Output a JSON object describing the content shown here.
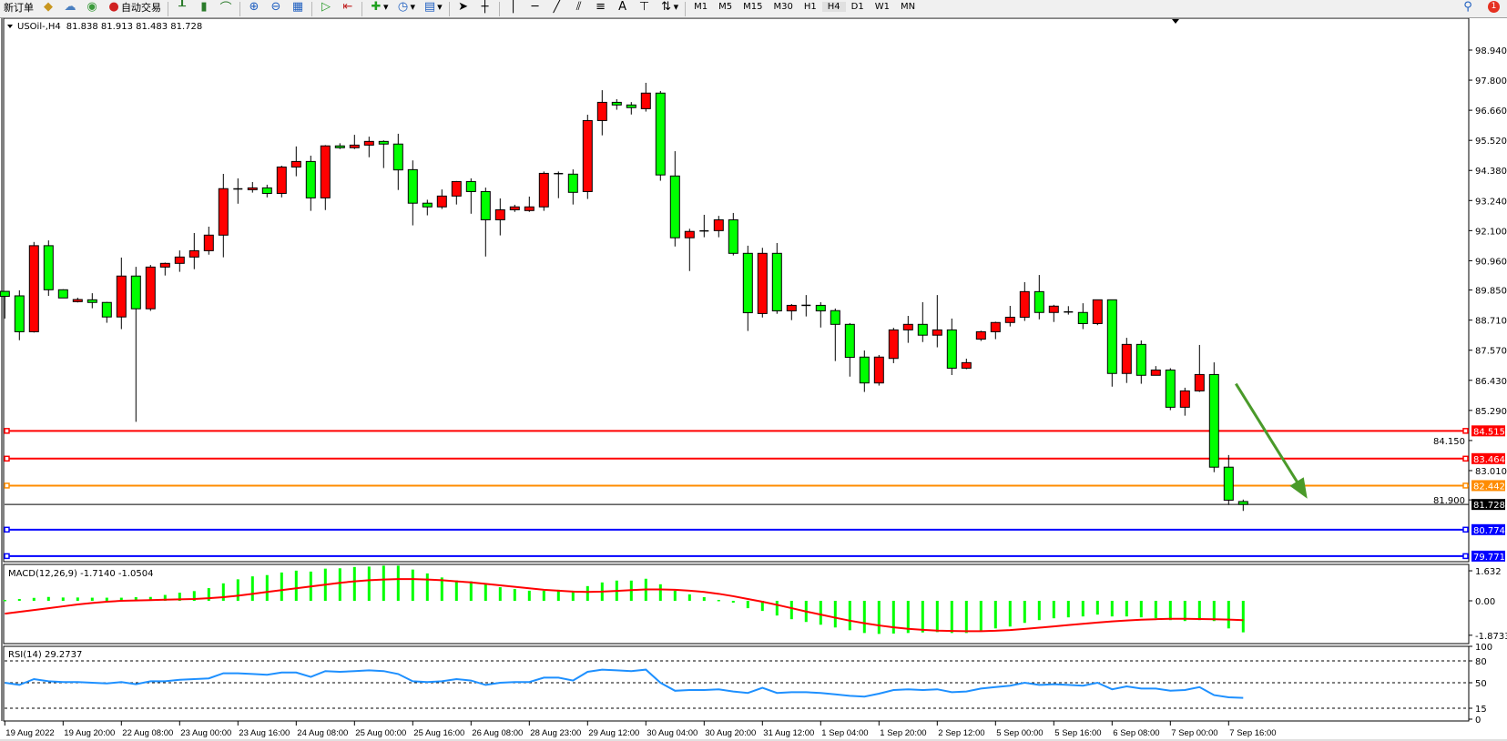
{
  "toolbar": {
    "new_order_label": "新订单",
    "auto_trading_label": "自动交易",
    "timeframes": [
      "M1",
      "M5",
      "M15",
      "M30",
      "H1",
      "H4",
      "D1",
      "W1",
      "MN"
    ],
    "active_timeframe": "H4",
    "notification_count": "1"
  },
  "chart_header": {
    "symbol_label": "USOil-,H4",
    "ohlc_text": "81.838 81.913 81.483 81.728"
  },
  "colors": {
    "bull_candle": "#ff0000",
    "bear_candle": "#00ff00",
    "macd_histogram": "#00ff00",
    "macd_signal": "#ff0000",
    "rsi_line": "#1e90ff",
    "arrow": "#4a9a2a"
  },
  "chart_data": [
    {
      "type": "candlestick",
      "symbol": "USOil-",
      "timeframe": "H4",
      "ylim": [
        79.62,
        99.5
      ],
      "y_ticks": [
        "98.940",
        "97.800",
        "96.660",
        "95.520",
        "94.380",
        "93.240",
        "92.100",
        "90.960",
        "89.850",
        "88.710",
        "87.570",
        "86.430",
        "85.290",
        "84.150",
        "83.010",
        "81.900"
      ],
      "x_tick_labels": [
        "19 Aug 2022",
        "19 Aug 20:00",
        "22 Aug 08:00",
        "23 Aug 00:00",
        "23 Aug 16:00",
        "24 Aug 08:00",
        "25 Aug 00:00",
        "25 Aug 16:00",
        "26 Aug 08:00",
        "28 Aug 23:00",
        "29 Aug 12:00",
        "30 Aug 04:00",
        "30 Aug 20:00",
        "31 Aug 12:00",
        "1 Sep 04:00",
        "1 Sep 20:00",
        "2 Sep 12:00",
        "5 Sep 00:00",
        "5 Sep 16:00",
        "6 Sep 08:00",
        "7 Sep 00:00",
        "7 Sep 16:00"
      ],
      "ohlc_fields": [
        "open",
        "high",
        "low",
        "close"
      ],
      "candles": [
        [
          89.8,
          89.8,
          88.77,
          89.61
        ],
        [
          89.63,
          89.84,
          87.95,
          88.27
        ],
        [
          88.27,
          91.67,
          88.24,
          91.53
        ],
        [
          91.53,
          91.73,
          89.63,
          89.86
        ],
        [
          89.86,
          89.88,
          89.55,
          89.55
        ],
        [
          89.41,
          89.56,
          89.38,
          89.49
        ],
        [
          89.48,
          89.73,
          89.16,
          89.38
        ],
        [
          89.38,
          89.4,
          88.61,
          88.83
        ],
        [
          88.83,
          91.08,
          88.37,
          90.38
        ],
        [
          90.38,
          90.73,
          84.86,
          89.14
        ],
        [
          89.14,
          90.8,
          89.06,
          90.72
        ],
        [
          90.72,
          90.89,
          90.4,
          90.86
        ],
        [
          90.86,
          91.35,
          90.54,
          91.1
        ],
        [
          91.1,
          92.01,
          90.64,
          91.34
        ],
        [
          91.34,
          92.25,
          91.19,
          91.93
        ],
        [
          91.93,
          94.25,
          91.09,
          93.69
        ],
        [
          93.68,
          94.08,
          93.12,
          93.68
        ],
        [
          93.65,
          93.94,
          93.54,
          93.72
        ],
        [
          93.72,
          93.84,
          93.36,
          93.51
        ],
        [
          93.51,
          94.56,
          93.36,
          94.51
        ],
        [
          94.51,
          95.29,
          94.16,
          94.72
        ],
        [
          94.72,
          94.94,
          92.85,
          93.34
        ],
        [
          93.34,
          95.34,
          92.88,
          95.31
        ],
        [
          95.31,
          95.41,
          95.19,
          95.24
        ],
        [
          95.24,
          95.73,
          95.19,
          95.34
        ],
        [
          95.34,
          95.66,
          94.88,
          95.48
        ],
        [
          95.48,
          95.52,
          94.47,
          95.38
        ],
        [
          95.38,
          95.77,
          93.64,
          94.4
        ],
        [
          94.41,
          94.76,
          92.3,
          93.14
        ],
        [
          93.14,
          93.27,
          92.68,
          93.0
        ],
        [
          93.0,
          93.66,
          92.92,
          93.41
        ],
        [
          93.41,
          93.98,
          93.09,
          93.96
        ],
        [
          93.96,
          94.08,
          92.74,
          93.58
        ],
        [
          93.58,
          93.73,
          91.12,
          92.51
        ],
        [
          92.51,
          93.32,
          91.92,
          92.89
        ],
        [
          92.89,
          93.08,
          92.81,
          93.0
        ],
        [
          92.86,
          93.39,
          92.81,
          93.0
        ],
        [
          93.0,
          94.34,
          92.85,
          94.27
        ],
        [
          94.26,
          94.34,
          93.33,
          94.26
        ],
        [
          94.24,
          94.42,
          93.09,
          93.55
        ],
        [
          93.58,
          96.49,
          93.3,
          96.27
        ],
        [
          96.27,
          97.42,
          95.71,
          96.96
        ],
        [
          96.96,
          97.08,
          96.68,
          96.86
        ],
        [
          96.86,
          96.97,
          96.5,
          96.76
        ],
        [
          96.72,
          97.7,
          96.61,
          97.31
        ],
        [
          97.31,
          97.39,
          93.99,
          94.21
        ],
        [
          94.17,
          95.11,
          91.5,
          91.83
        ],
        [
          91.83,
          92.17,
          90.57,
          92.07
        ],
        [
          92.09,
          92.7,
          91.85,
          92.09
        ],
        [
          92.1,
          92.66,
          91.85,
          92.51
        ],
        [
          92.51,
          92.77,
          91.16,
          91.24
        ],
        [
          91.24,
          91.53,
          88.3,
          88.99
        ],
        [
          88.96,
          91.45,
          88.81,
          91.24
        ],
        [
          91.24,
          91.63,
          88.95,
          89.06
        ],
        [
          89.06,
          89.32,
          88.71,
          89.27
        ],
        [
          89.27,
          89.66,
          88.85,
          89.27
        ],
        [
          89.27,
          89.39,
          88.43,
          89.06
        ],
        [
          89.07,
          89.15,
          87.16,
          88.55
        ],
        [
          88.55,
          88.6,
          86.57,
          87.3
        ],
        [
          87.31,
          87.56,
          85.99,
          86.33
        ],
        [
          86.33,
          87.39,
          86.23,
          87.31
        ],
        [
          87.26,
          88.42,
          87.08,
          88.34
        ],
        [
          88.34,
          88.87,
          87.85,
          88.55
        ],
        [
          88.55,
          89.39,
          87.88,
          88.14
        ],
        [
          88.14,
          89.66,
          87.68,
          88.34
        ],
        [
          88.34,
          88.77,
          86.63,
          86.89
        ],
        [
          86.89,
          87.25,
          86.85,
          87.1
        ],
        [
          87.99,
          88.31,
          87.92,
          88.27
        ],
        [
          88.27,
          88.65,
          87.99,
          88.62
        ],
        [
          88.62,
          89.25,
          88.47,
          88.82
        ],
        [
          88.82,
          90.15,
          88.68,
          89.79
        ],
        [
          89.79,
          90.42,
          88.74,
          89.0
        ],
        [
          89.0,
          89.29,
          88.64,
          89.24
        ],
        [
          89.02,
          89.24,
          88.92,
          89.02
        ],
        [
          89.0,
          89.35,
          88.37,
          88.58
        ],
        [
          88.58,
          89.48,
          88.52,
          89.48
        ],
        [
          89.48,
          89.48,
          86.19,
          86.69
        ],
        [
          86.69,
          88.04,
          86.33,
          87.79
        ],
        [
          87.79,
          87.94,
          86.3,
          86.62
        ],
        [
          86.62,
          86.97,
          86.62,
          86.82
        ],
        [
          86.82,
          86.89,
          85.3,
          85.41
        ],
        [
          85.41,
          86.15,
          85.09,
          86.03
        ],
        [
          86.03,
          87.77,
          85.99,
          86.65
        ],
        [
          86.65,
          87.11,
          82.95,
          83.14
        ],
        [
          83.14,
          83.6,
          81.71,
          81.89
        ],
        [
          81.838,
          81.913,
          81.483,
          81.728
        ]
      ],
      "horizontal_levels": [
        {
          "value": 84.515,
          "label": "84.515",
          "color": "#ff0000"
        },
        {
          "value": 83.464,
          "label": "83.464",
          "color": "#ff0000"
        },
        {
          "value": 82.442,
          "label": "82.442",
          "color": "#ff8c00"
        },
        {
          "value": 81.728,
          "label": "81.728",
          "color": "#000000"
        },
        {
          "value": 80.774,
          "label": "80.774",
          "color": "#0000ff"
        },
        {
          "value": 79.771,
          "label": "79.771",
          "color": "#0000ff"
        }
      ],
      "annotation": {
        "type": "arrow",
        "direction": "down",
        "from_candle": 84.5,
        "from_price": 86.3,
        "to_candle": 89.4,
        "to_price": 81.95
      }
    },
    {
      "type": "bar+line",
      "title": "MACD(12,26,9) -1.7140 -1.0504",
      "y_ticks": [
        "1.632",
        "0.00",
        "-1.8733"
      ],
      "ylim": [
        -2.0,
        1.9
      ],
      "histogram": [
        0.05,
        0.1,
        0.16,
        0.21,
        0.18,
        0.18,
        0.17,
        0.17,
        0.17,
        0.2,
        0.21,
        0.32,
        0.44,
        0.53,
        0.69,
        0.95,
        1.17,
        1.33,
        1.4,
        1.54,
        1.64,
        1.59,
        1.75,
        1.77,
        1.84,
        1.86,
        1.91,
        1.91,
        1.7,
        1.49,
        1.27,
        1.11,
        1.06,
        0.94,
        0.74,
        0.64,
        0.55,
        0.55,
        0.6,
        0.55,
        0.8,
        1.0,
        1.1,
        1.1,
        1.2,
        0.9,
        0.55,
        0.35,
        0.2,
        0.05,
        -0.1,
        -0.4,
        -0.55,
        -0.8,
        -1.0,
        -1.15,
        -1.3,
        -1.45,
        -1.6,
        -1.75,
        -1.8,
        -1.78,
        -1.75,
        -1.72,
        -1.7,
        -1.75,
        -1.75,
        -1.65,
        -1.5,
        -1.4,
        -1.2,
        -1.05,
        -0.95,
        -0.9,
        -0.85,
        -0.75,
        -0.85,
        -0.85,
        -0.9,
        -0.95,
        -1.05,
        -1.1,
        -1.05,
        -1.1,
        -1.5,
        -1.714
      ],
      "signal": [
        -0.7,
        -0.6,
        -0.5,
        -0.4,
        -0.3,
        -0.2,
        -0.12,
        -0.05,
        0,
        0.02,
        0.04,
        0.06,
        0.08,
        0.1,
        0.14,
        0.2,
        0.28,
        0.38,
        0.48,
        0.58,
        0.68,
        0.78,
        0.88,
        0.98,
        1.06,
        1.12,
        1.16,
        1.18,
        1.18,
        1.16,
        1.12,
        1.06,
        1.0,
        0.92,
        0.84,
        0.76,
        0.68,
        0.6,
        0.55,
        0.5,
        0.48,
        0.5,
        0.54,
        0.58,
        0.62,
        0.62,
        0.6,
        0.55,
        0.48,
        0.38,
        0.25,
        0.1,
        -0.05,
        -0.22,
        -0.4,
        -0.58,
        -0.75,
        -0.92,
        -1.08,
        -1.22,
        -1.34,
        -1.44,
        -1.52,
        -1.58,
        -1.62,
        -1.64,
        -1.65,
        -1.65,
        -1.63,
        -1.59,
        -1.53,
        -1.46,
        -1.39,
        -1.32,
        -1.25,
        -1.18,
        -1.12,
        -1.07,
        -1.03,
        -1.0,
        -0.98,
        -0.98,
        -0.99,
        -1.0,
        -1.02,
        -1.0504
      ]
    },
    {
      "type": "line",
      "title": "RSI(14) 29.2737",
      "y_ticks": [
        "100",
        "80",
        "50",
        "15",
        "0"
      ],
      "levels": [
        80,
        50,
        15
      ],
      "ylim": [
        0,
        100
      ],
      "values": [
        50,
        47,
        55,
        52,
        51,
        51,
        50,
        49,
        51,
        48,
        52,
        52,
        54,
        55,
        56,
        63,
        63,
        62,
        61,
        64,
        64,
        58,
        66,
        65,
        66,
        67,
        66,
        62,
        52,
        51,
        52,
        55,
        53,
        47,
        50,
        51,
        51,
        57,
        57,
        53,
        65,
        68,
        67,
        66,
        68,
        50,
        39,
        40,
        40,
        41,
        38,
        36,
        43,
        36,
        37,
        37,
        36,
        34,
        32,
        31,
        35,
        40,
        41,
        40,
        41,
        37,
        38,
        42,
        44,
        46,
        50,
        47,
        48,
        47,
        46,
        50,
        41,
        45,
        42,
        42,
        39,
        40,
        44,
        33,
        30,
        29.2737
      ]
    }
  ]
}
